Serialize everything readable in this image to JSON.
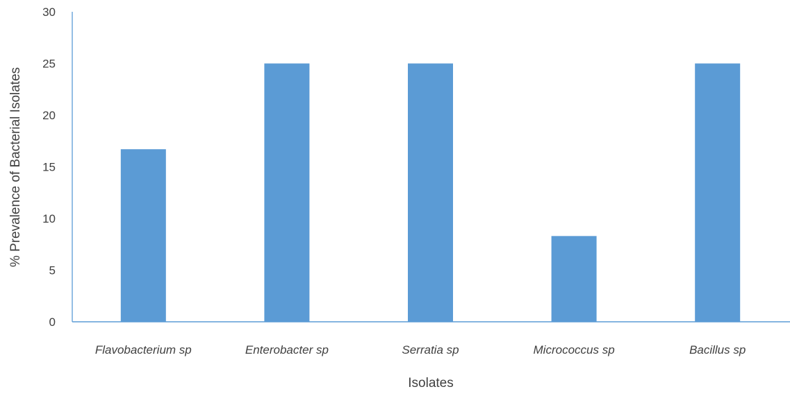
{
  "chart_data": {
    "type": "bar",
    "categories": [
      "Flavobacterium sp",
      "Enterobacter sp",
      "Serratia sp",
      "Micrococcus sp",
      "Bacillus sp"
    ],
    "values": [
      16.7,
      25,
      25,
      8.3,
      25
    ],
    "yticks": [
      "0",
      "5",
      "10",
      "15",
      "20",
      "25",
      "30"
    ],
    "xlabel": "Isolates",
    "ylabel": "% Prevalence of Bacterial Isolates",
    "ylim": [
      0,
      30
    ],
    "grid": false,
    "bar_color": "#5B9BD5",
    "axis_color": "#5B9BD5"
  }
}
